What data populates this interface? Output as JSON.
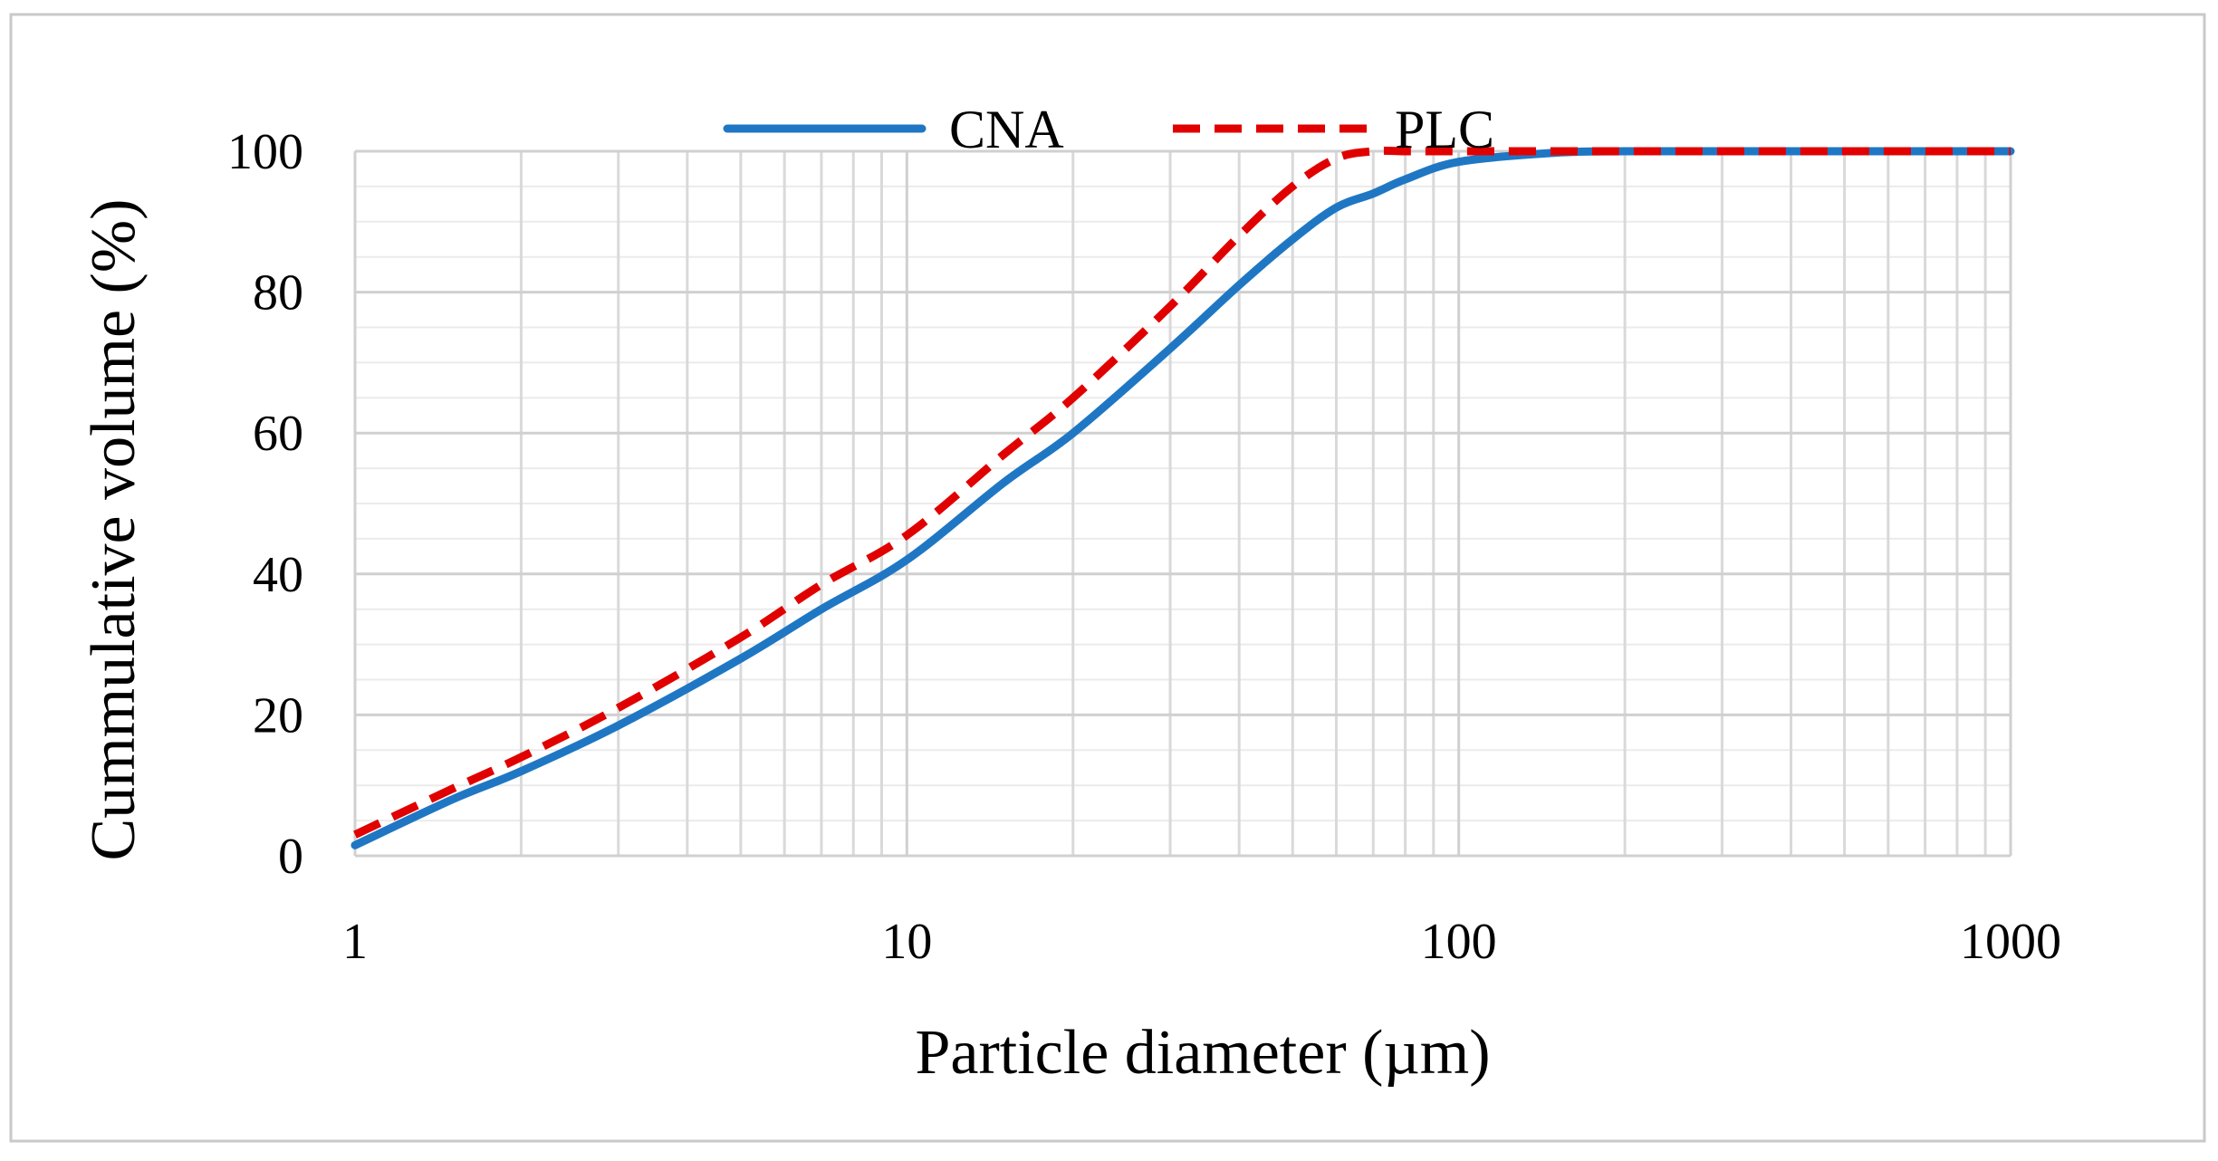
{
  "chart_data": {
    "type": "line",
    "title": "",
    "xlabel": "Particle diameter (µm)",
    "ylabel": "Cummulative volume (%)",
    "xscale": "log",
    "xlim": [
      1,
      1000
    ],
    "ylim": [
      0,
      100
    ],
    "xticks": [
      1,
      10,
      100,
      1000
    ],
    "xtick_labels": [
      "1",
      "10",
      "100",
      "1000"
    ],
    "yticks": [
      0,
      20,
      40,
      60,
      80,
      100
    ],
    "ytick_labels": [
      "0",
      "20",
      "40",
      "60",
      "80",
      "100"
    ],
    "grid": true,
    "legend_position": "top",
    "series": [
      {
        "name": "CNA",
        "color": "#1f77c4",
        "style": "solid",
        "x": [
          1,
          1.5,
          2,
          3,
          5,
          7,
          10,
          15,
          20,
          30,
          40,
          50,
          60,
          70,
          80,
          100,
          150,
          200,
          300,
          500,
          1000
        ],
        "y": [
          1.5,
          8,
          12,
          18.5,
          28,
          35,
          42,
          53,
          60,
          72,
          81,
          87.5,
          92,
          94,
          96,
          98.5,
          99.8,
          100,
          100,
          100,
          100
        ]
      },
      {
        "name": "PLC",
        "color": "#e00000",
        "style": "dashed",
        "x": [
          1,
          1.5,
          2,
          3,
          5,
          7,
          10,
          15,
          20,
          30,
          40,
          50,
          60,
          70,
          80,
          100,
          150,
          200,
          300,
          500,
          1000
        ],
        "y": [
          3,
          9.5,
          14,
          21,
          31,
          38.5,
          45.5,
          57,
          65,
          78,
          88,
          95,
          99,
          100,
          100,
          100,
          100,
          100,
          100,
          100,
          100
        ]
      }
    ]
  }
}
